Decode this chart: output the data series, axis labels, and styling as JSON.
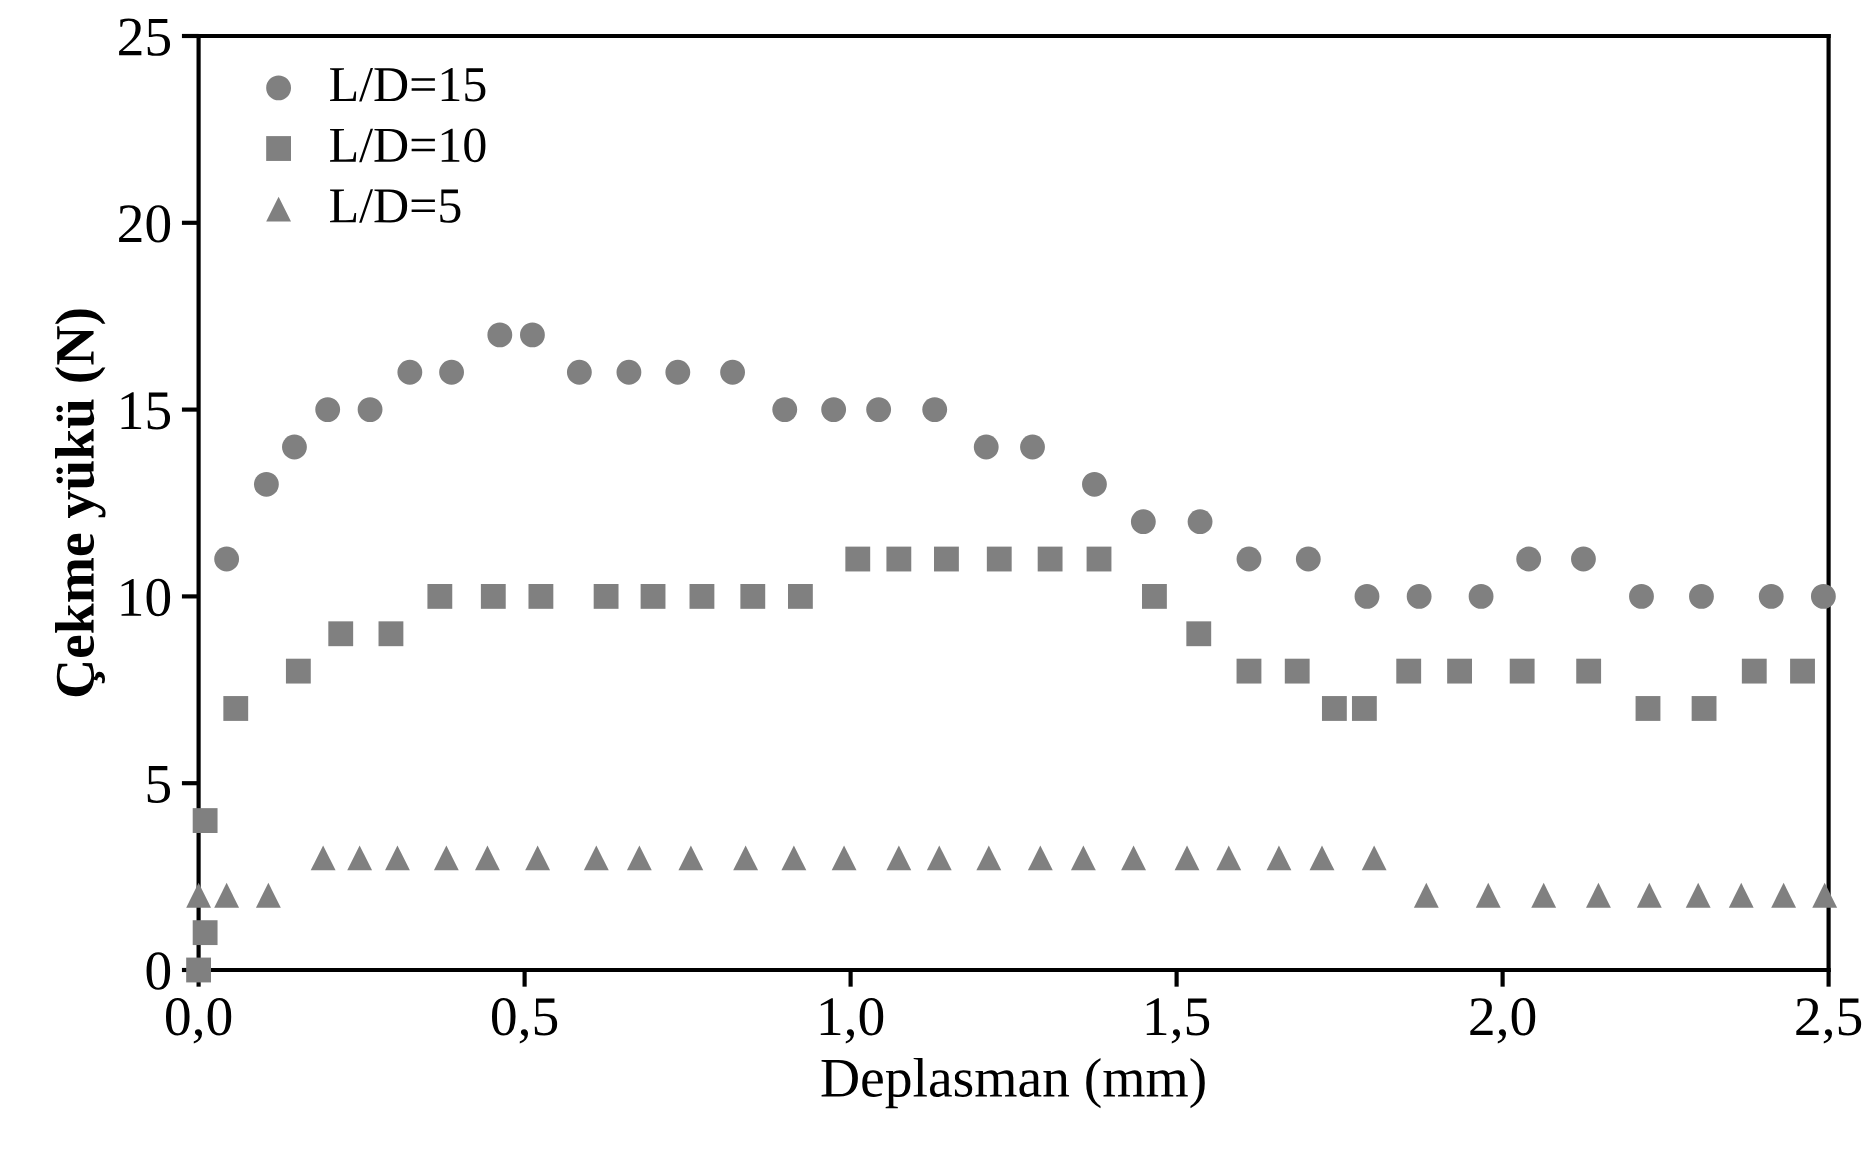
{
  "chart_data": {
    "type": "scatter",
    "xlabel": "Deplasman (mm)",
    "ylabel": "Çekme yükü (N)",
    "xlim": [
      0,
      2.5
    ],
    "xticks": [
      {
        "value": 0,
        "label": "0,0"
      },
      {
        "value": 0.5,
        "label": "0,5"
      },
      {
        "value": 1,
        "label": "1,0"
      },
      {
        "value": 1.5,
        "label": "1,5"
      },
      {
        "value": 2,
        "label": "2,0"
      },
      {
        "value": 2.5,
        "label": "2,5"
      }
    ],
    "ylim": [
      0,
      25
    ],
    "yticks": [
      0,
      5,
      10,
      15,
      20,
      25
    ],
    "grid": false,
    "legend": "top left",
    "series": [
      {
        "name": "L/D=15",
        "color": "#808080",
        "marker": "circle",
        "x": [
          0.043,
          0.104,
          0.147,
          0.198,
          0.263,
          0.324,
          0.388,
          0.462,
          0.512,
          0.584,
          0.66,
          0.735,
          0.819,
          0.899,
          0.974,
          1.043,
          1.129,
          1.208,
          1.279,
          1.374,
          1.449,
          1.536,
          1.611,
          1.702,
          1.792,
          1.872,
          1.967,
          2.04,
          2.124,
          2.213,
          2.305,
          2.412,
          2.492
        ],
        "values": [
          11,
          13,
          14,
          15,
          15,
          16,
          16,
          17,
          17,
          16,
          16,
          16,
          16,
          15,
          15,
          15,
          15,
          14,
          14,
          13,
          12,
          12,
          11,
          11,
          10,
          10,
          10,
          11,
          11,
          10,
          10,
          10,
          10
        ]
      },
      {
        "name": "L/D=10",
        "color": "#808080",
        "marker": "square",
        "x": [
          0,
          0.01,
          0.01,
          0.057,
          0.153,
          0.218,
          0.295,
          0.37,
          0.452,
          0.525,
          0.625,
          0.697,
          0.772,
          0.85,
          0.923,
          1.011,
          1.074,
          1.147,
          1.228,
          1.306,
          1.381,
          1.466,
          1.534,
          1.611,
          1.685,
          1.742,
          1.788,
          1.856,
          1.934,
          2.03,
          2.132,
          2.223,
          2.309,
          2.386,
          2.46
        ],
        "values": [
          0,
          1,
          4,
          7,
          8,
          9,
          9,
          10,
          10,
          10,
          10,
          10,
          10,
          10,
          10,
          11,
          11,
          11,
          11,
          11,
          11,
          10,
          9,
          8,
          8,
          7,
          7,
          8,
          8,
          8,
          8,
          7,
          7,
          8,
          8
        ]
      },
      {
        "name": "L/D=5",
        "color": "#808080",
        "marker": "triangle",
        "x": [
          0,
          0.043,
          0.107,
          0.191,
          0.247,
          0.305,
          0.38,
          0.443,
          0.52,
          0.61,
          0.676,
          0.755,
          0.839,
          0.913,
          0.99,
          1.074,
          1.136,
          1.212,
          1.291,
          1.357,
          1.434,
          1.516,
          1.58,
          1.657,
          1.723,
          1.803,
          1.883,
          1.978,
          2.063,
          2.147,
          2.225,
          2.3,
          2.366,
          2.431,
          2.494
        ],
        "values": [
          2,
          2,
          2,
          3,
          3,
          3,
          3,
          3,
          3,
          3,
          3,
          3,
          3,
          3,
          3,
          3,
          3,
          3,
          3,
          3,
          3,
          3,
          3,
          3,
          3,
          3,
          2,
          2,
          2,
          2,
          2,
          2,
          2,
          2,
          2
        ]
      }
    ]
  }
}
